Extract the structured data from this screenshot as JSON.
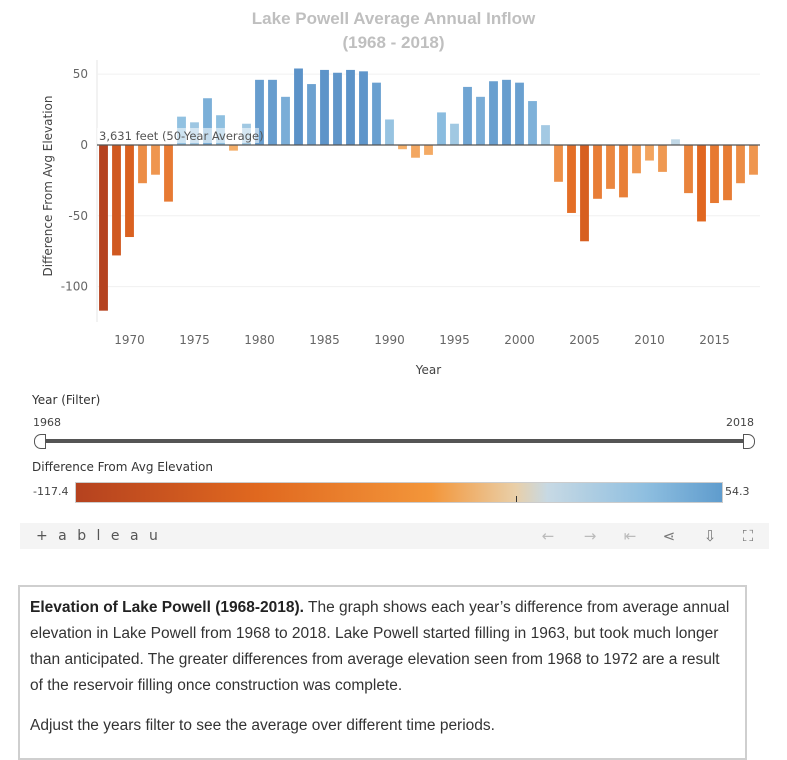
{
  "chart_data": {
    "type": "bar",
    "title_line1": "Lake Powell Average Annual Inflow",
    "title_line2": "(1968 - 2018)",
    "xlabel": "Year",
    "ylabel": "Difference From Avg Elevation",
    "xlim": [
      1967.5,
      2018.5
    ],
    "ylim": [
      -125,
      60
    ],
    "yticks": [
      50,
      0,
      -50,
      -100
    ],
    "xticks": [
      1970,
      1975,
      1980,
      1985,
      1990,
      1995,
      2000,
      2005,
      2010,
      2015
    ],
    "grid": "horizontal",
    "reference_label": "3,631 feet (50-Year Average)",
    "years": [
      1968,
      1969,
      1970,
      1971,
      1972,
      1973,
      1974,
      1975,
      1976,
      1977,
      1978,
      1979,
      1980,
      1981,
      1982,
      1983,
      1984,
      1985,
      1986,
      1987,
      1988,
      1989,
      1990,
      1991,
      1992,
      1993,
      1994,
      1995,
      1996,
      1997,
      1998,
      1999,
      2000,
      2001,
      2002,
      2003,
      2004,
      2005,
      2006,
      2007,
      2008,
      2009,
      2010,
      2011,
      2012,
      2013,
      2014,
      2015,
      2016,
      2017,
      2018
    ],
    "values": [
      -117,
      -78,
      -65,
      -27,
      -21,
      -40,
      20,
      16,
      33,
      21,
      -4,
      15,
      46,
      46,
      34,
      54,
      43,
      53,
      51,
      53,
      52,
      44,
      18,
      -3,
      -9,
      -7,
      23,
      15,
      41,
      34,
      45,
      46,
      44,
      31,
      14,
      -26,
      -48,
      -68,
      -38,
      -31,
      -37,
      -20,
      -11,
      -19,
      4,
      -34,
      -54,
      -41,
      -39,
      -27,
      -21
    ]
  },
  "filter": {
    "label": "Year (Filter)",
    "min_label": "1968",
    "max_label": "2018"
  },
  "legend": {
    "label": "Difference From Avg Elevation",
    "min_label": "-117.4",
    "max_label": "54.3"
  },
  "toolbar": {
    "logo": "+ a b l e a u",
    "undo": "←",
    "redo": "→",
    "revert": "⇤",
    "share": "⋖",
    "download": "⇩",
    "fullscreen": "⛶"
  },
  "caption": {
    "bold": "Elevation of Lake Powell (1968-2018).",
    "text": " The graph shows each year’s difference from average annual elevation in Lake Powell from 1968 to 2018. Lake Powell started filling in 1963, but took much longer than anticipated. The greater differences from average elevation seen from 1968 to 1972 are a result of the reservoir filling once construction was complete.",
    "p2": "Adjust the years filter to see the average over different time periods."
  }
}
